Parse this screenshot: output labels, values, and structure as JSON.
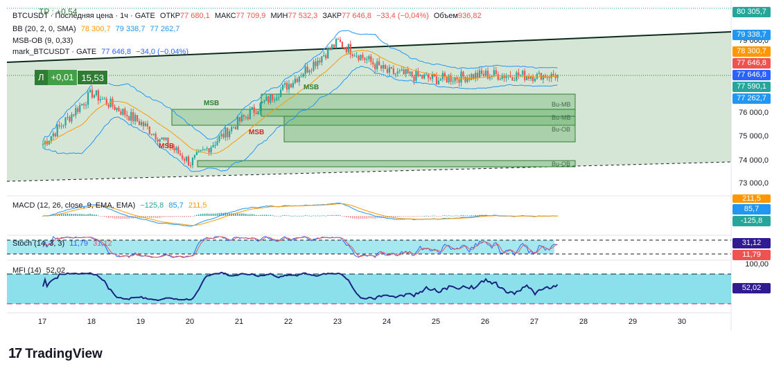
{
  "legend": {
    "symbol_line": "BTCUSDT · Последняя цена · 1ч · GATE",
    "open_label": "ОТКР",
    "open": "77 680,1",
    "high_label": "МАКС",
    "high": "77 709,9",
    "low_label": "МИН",
    "low": "77 532,3",
    "close_label": "ЗАКР",
    "close": "77 646,8",
    "change": "−33,4 (−0,04%)",
    "volume_label": "Объем",
    "volume": "936,82",
    "bb": {
      "label": "BB (20, 2, 0, SMA)",
      "basis": "78 300,7",
      "upper": "79 338,7",
      "lower": "77 262,7"
    },
    "msb_ob": "MSB-OB (9, 0,33)",
    "mark": {
      "label": "mark_BTCUSDT · GATE",
      "value": "77 646,8",
      "change": "−34,0 (−0,04%)"
    },
    "macd": {
      "label": "MACD (12, 26, close, 9, EMA, EMA)",
      "hist": "−125,8",
      "macd": "85,7",
      "signal": "211,5"
    },
    "stoch": {
      "label": "Stoch (14, 3, 3)",
      "k": "11,79",
      "d": "31,12"
    },
    "mfi": {
      "label": "MFI (14)",
      "value": "52,02"
    }
  },
  "tp_label": "TP : +0,54",
  "position": {
    "side": "Л",
    "pnl": "+0,01",
    "qty": "15,53"
  },
  "price_axis": {
    "ticks": [
      "79 000,0",
      "76 000,0",
      "75 000,0",
      "74 000,0",
      "73 000,0"
    ],
    "tags": [
      {
        "text": "80 305,7",
        "color": "#26a69a"
      },
      {
        "text": "79 338,7",
        "color": "#2196f3"
      },
      {
        "text": "78 300,7",
        "color": "#ff9800"
      },
      {
        "text": "77 646,8",
        "color": "#ef5350"
      },
      {
        "text": "77 646,8",
        "color": "#2962ff"
      },
      {
        "text": "77 590,1",
        "color": "#26a69a"
      },
      {
        "text": "77 262,7",
        "color": "#2196f3"
      }
    ]
  },
  "macd_axis": {
    "tags": [
      {
        "text": "211,5",
        "color": "#ff9800"
      },
      {
        "text": "85,7",
        "color": "#2196f3"
      },
      {
        "text": "-125,8",
        "color": "#26a69a"
      }
    ]
  },
  "stoch_axis": {
    "tags": [
      {
        "text": "31,12",
        "color": "#311b92"
      },
      {
        "text": "11,79",
        "color": "#ef5350"
      }
    ]
  },
  "mfi_axis": {
    "tick": "100,00",
    "tags": [
      {
        "text": "52,02",
        "color": "#311b92"
      }
    ]
  },
  "zone_labels": [
    "Bu-MB",
    "Bu-MB",
    "Bu-OB",
    "Bu-OB"
  ],
  "msb_labels": [
    {
      "text": "MSB",
      "color": "#2e7d32"
    },
    {
      "text": "MSB",
      "color": "#2e7d32"
    },
    {
      "text": "MSB",
      "color": "#c62828"
    },
    {
      "text": "MSB",
      "color": "#c62828"
    }
  ],
  "x_axis": [
    "17",
    "18",
    "19",
    "20",
    "21",
    "22",
    "23",
    "24",
    "25",
    "26",
    "27",
    "28",
    "29",
    "30"
  ],
  "logo": {
    "mark": "17",
    "text": "TradingView"
  },
  "chart_data": {
    "type": "line",
    "title": "BTCUSDT · 1ч · GATE",
    "x": [
      "17",
      "18",
      "19",
      "20",
      "21",
      "22",
      "23",
      "24",
      "25",
      "26",
      "27"
    ],
    "series": [
      {
        "name": "BTCUSDT",
        "values": [
          74700,
          76900,
          75600,
          73900,
          75700,
          77300,
          79100,
          77800,
          77500,
          77700,
          77650
        ]
      }
    ],
    "bands": {
      "upper": "79 338,7",
      "basis": "78 300,7",
      "lower": "77 262,7"
    },
    "ylim": [
      72500,
      80500
    ],
    "colors": {
      "up": "#26a69a",
      "down": "#ef5350",
      "basis": "#ff9800",
      "band": "#2196f3",
      "zone": "#43a047"
    }
  }
}
